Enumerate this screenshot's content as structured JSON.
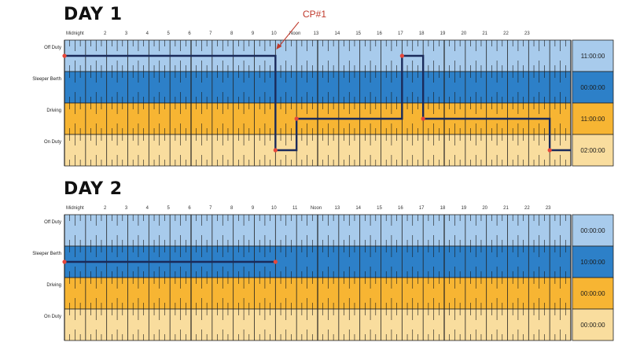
{
  "days": [
    {
      "title": "DAY 1",
      "hour_labels": [
        "Midnight",
        "2",
        "3",
        "4",
        "5",
        "6",
        "7",
        "8",
        "9",
        "10",
        "Noon",
        "13",
        "14",
        "15",
        "16",
        "17",
        "18",
        "19",
        "20",
        "21",
        "22",
        "23"
      ],
      "rows": [
        {
          "label": "Off Duty",
          "total": "11:00:00"
        },
        {
          "label": "Sleeper Berth",
          "total": "00:00:00"
        },
        {
          "label": "Driving",
          "total": "11:00:00"
        },
        {
          "label": "On Duty",
          "total": "02:00:00"
        }
      ],
      "segments": [
        {
          "status": 0,
          "start": 0,
          "end": 10
        },
        {
          "status": 3,
          "start": 10,
          "end": 11
        },
        {
          "status": 2,
          "start": 11,
          "end": 16
        },
        {
          "status": 0,
          "start": 16,
          "end": 17
        },
        {
          "status": 2,
          "start": 17,
          "end": 23
        },
        {
          "status": 3,
          "start": 23,
          "end": 24
        }
      ],
      "markers": [
        {
          "status": 0,
          "hour": 0
        },
        {
          "status": 0,
          "hour": 16
        },
        {
          "status": 2,
          "hour": 11
        },
        {
          "status": 2,
          "hour": 17
        },
        {
          "status": 3,
          "hour": 10
        },
        {
          "status": 3,
          "hour": 23
        }
      ],
      "annotation": {
        "text": "CP#1",
        "hour": 10,
        "status": 0
      }
    },
    {
      "title": "DAY 2",
      "hour_labels": [
        "Midnight",
        "2",
        "3",
        "4",
        "5",
        "6",
        "7",
        "8",
        "9",
        "10",
        "11",
        "Noon",
        "13",
        "14",
        "15",
        "16",
        "17",
        "18",
        "19",
        "20",
        "21",
        "22",
        "23"
      ],
      "rows": [
        {
          "label": "Off Duty",
          "total": "00:00:00"
        },
        {
          "label": "Sleeper Berth",
          "total": "10:00:00"
        },
        {
          "label": "Driving",
          "total": "00:00:00"
        },
        {
          "label": "On Duty",
          "total": "00:00:00"
        }
      ],
      "segments": [
        {
          "status": 1,
          "start": 0,
          "end": 10
        }
      ],
      "markers": [
        {
          "status": 1,
          "hour": 0
        },
        {
          "status": 1,
          "hour": 10
        }
      ],
      "annotation": null
    }
  ],
  "colors": {
    "off_duty": "#a8cbec",
    "sleeper_berth": "#2d80c8",
    "driving": "#f7b533",
    "on_duty": "#f9dd9e",
    "line": "#1a2a5a",
    "marker": "#e8473a",
    "annotation": "#c0392b"
  }
}
